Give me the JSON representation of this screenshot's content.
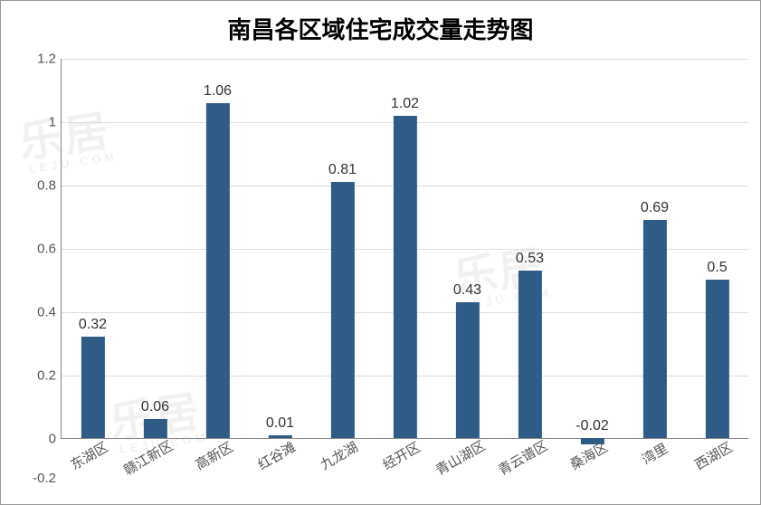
{
  "chart": {
    "type": "bar",
    "title": "南昌各区域住宅成交量走势图",
    "title_fontsize": 26,
    "background_color": "#ffffff",
    "border_color": "#999999",
    "grid_color": "#dddddd",
    "axis_color": "#888888",
    "bar_color": "#2e5c87",
    "label_color": "#333333",
    "tick_color": "#555555",
    "bar_width_ratio": 0.38,
    "label_fontsize": 16,
    "tick_fontsize": 15,
    "xlabel_fontsize": 15,
    "ylim": [
      0,
      1.2
    ],
    "yticks": [
      0,
      0.2,
      0.4,
      0.6,
      0.8,
      1,
      1.2
    ],
    "below_axis_tick": "-0.2",
    "categories": [
      "东湖区",
      "赣江新区",
      "高新区",
      "红谷滩",
      "九龙湖",
      "经开区",
      "青山湖区",
      "青云谱区",
      "桑海区",
      "湾里",
      "西湖区"
    ],
    "values": [
      0.32,
      0.06,
      1.06,
      0.01,
      0.81,
      1.02,
      0.43,
      0.53,
      -0.02,
      0.69,
      0.5
    ],
    "value_labels": [
      "0.32",
      "0.06",
      "1.06",
      "0.01",
      "0.81",
      "1.02",
      "0.43",
      "0.53",
      "-0.02",
      "0.69",
      "0.5"
    ]
  },
  "watermark": {
    "text": "乐居",
    "sub": "LEJU.COM"
  }
}
